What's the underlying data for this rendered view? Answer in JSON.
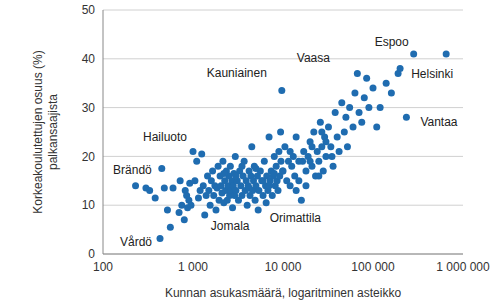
{
  "chart_data": {
    "type": "scatter",
    "log": "x",
    "grid": true,
    "color": "#1f6cb0",
    "marker": "circle",
    "x_label": "Kunnan asukasmäärä, logaritminen asteikko",
    "y_label": [
      "Korkeakoulutettujen osuus (%)",
      "palkansaajista"
    ],
    "xlim": [
      100,
      1000000
    ],
    "xticks": [
      100,
      {
        "value": 1000,
        "label": "1 000"
      },
      {
        "value": 10000,
        "label": "10 000"
      },
      {
        "value": 100000,
        "label": "100 000"
      },
      {
        "value": 1000000,
        "label": "1 000 000"
      }
    ],
    "ylim": [
      0,
      50
    ],
    "yticks": [
      0,
      10,
      20,
      30,
      40,
      50
    ],
    "x": [
      230,
      300,
      330,
      380,
      430,
      450,
      480,
      520,
      560,
      600,
      700,
      720,
      750,
      800,
      820,
      850,
      870,
      900,
      920,
      950,
      1000,
      1050,
      1100,
      1150,
      1200,
      1250,
      1300,
      1350,
      1400,
      1450,
      1500,
      1550,
      1600,
      1650,
      1700,
      1750,
      1800,
      1850,
      1900,
      1950,
      2000,
      2050,
      2100,
      2150,
      2200,
      2250,
      2300,
      2350,
      2400,
      2450,
      2500,
      2550,
      2600,
      2650,
      2700,
      2750,
      2800,
      2850,
      2900,
      2950,
      3000,
      3100,
      3200,
      3300,
      3400,
      3500,
      3600,
      3700,
      3800,
      3900,
      4000,
      4100,
      4200,
      4300,
      4400,
      4500,
      4600,
      4700,
      4800,
      4900,
      5000,
      5200,
      5300,
      5400,
      5600,
      5800,
      6000,
      6200,
      6400,
      6600,
      6800,
      7000,
      7200,
      7400,
      7600,
      7800,
      8000,
      8200,
      8400,
      8600,
      8800,
      9000,
      9200,
      9400,
      9700,
      9900,
      2200,
      3500,
      4200,
      5000,
      6000,
      7000,
      8000,
      3000,
      6500,
      9500,
      10000,
      10500,
      11000,
      11500,
      12000,
      12500,
      13000,
      13500,
      14000,
      15000,
      16000,
      16500,
      17000,
      18000,
      19000,
      20000,
      21000,
      22000,
      23000,
      24000,
      25000,
      26000,
      27000,
      28000,
      29000,
      12000,
      15000,
      18000,
      20000,
      25000,
      30000,
      35000,
      14000,
      21000,
      27000,
      30000,
      32000,
      34000,
      36000,
      38000,
      40000,
      42000,
      45000,
      48000,
      50000,
      52000,
      55000,
      60000,
      63000,
      67000,
      70000,
      75000,
      80000,
      85000,
      90000,
      100000,
      110000,
      120000,
      140000,
      160000,
      190000,
      200000,
      235000,
      283000,
      650000
    ],
    "values": [
      14,
      13.5,
      13,
      11.5,
      3.2,
      17.5,
      13.5,
      9,
      5.5,
      13.5,
      8.5,
      15,
      10,
      7,
      13,
      12,
      9.5,
      11,
      14.5,
      10,
      21,
      15,
      19,
      11.5,
      13,
      20.5,
      14,
      8,
      12,
      16,
      13,
      10,
      15,
      17,
      12,
      14,
      9,
      13.5,
      18,
      11,
      16,
      14,
      12.5,
      19,
      10.5,
      15,
      13,
      17,
      11,
      14,
      16,
      12,
      18,
      13,
      15,
      9.5,
      14,
      16.5,
      12,
      20,
      13,
      15,
      11,
      17,
      14,
      12,
      16,
      19,
      13,
      15,
      10,
      14,
      17,
      12,
      16,
      22,
      13,
      15,
      18,
      11,
      14,
      16,
      9,
      13,
      17,
      15,
      12,
      19,
      14,
      16,
      13,
      24,
      15,
      17,
      12,
      16,
      20,
      14,
      18,
      15,
      13,
      21,
      16,
      25,
      33.5,
      17,
      16.5,
      18,
      13.5,
      17.5,
      15,
      14,
      16.5,
      16,
      10.5,
      19,
      17,
      22,
      15,
      19,
      14,
      18,
      20,
      16,
      24,
      15,
      11,
      19,
      21,
      17,
      20,
      23,
      18,
      25,
      16,
      21,
      19,
      27,
      22,
      17,
      24,
      21,
      19,
      14,
      19,
      16,
      23,
      20,
      13,
      22,
      25,
      20,
      26,
      22,
      18,
      29,
      24,
      21,
      31,
      25,
      28,
      22,
      30,
      26,
      33,
      37,
      29,
      27,
      32,
      36,
      30,
      34,
      26,
      30,
      35,
      33,
      37,
      38,
      28,
      41,
      41
    ],
    "annotations": [
      {
        "text": "Espoo",
        "x": 283000,
        "y": 41
      },
      {
        "text": "Helsinki",
        "x": 650000,
        "y": 41
      },
      {
        "text": "Vaasa",
        "x": 67000,
        "y": 37
      },
      {
        "text": "Kauniainen",
        "x": 9700,
        "y": 33.5
      },
      {
        "text": "Vantaa",
        "x": 235000,
        "y": 28
      },
      {
        "text": "Hailuoto",
        "x": 1000,
        "y": 21
      },
      {
        "text": "Brändö",
        "x": 450,
        "y": 17.5
      },
      {
        "text": "Vårdö",
        "x": 430,
        "y": 3.2
      },
      {
        "text": "Jomala",
        "x": 5300,
        "y": 9
      },
      {
        "text": "Orimattila",
        "x": 16000,
        "y": 11
      }
    ]
  }
}
